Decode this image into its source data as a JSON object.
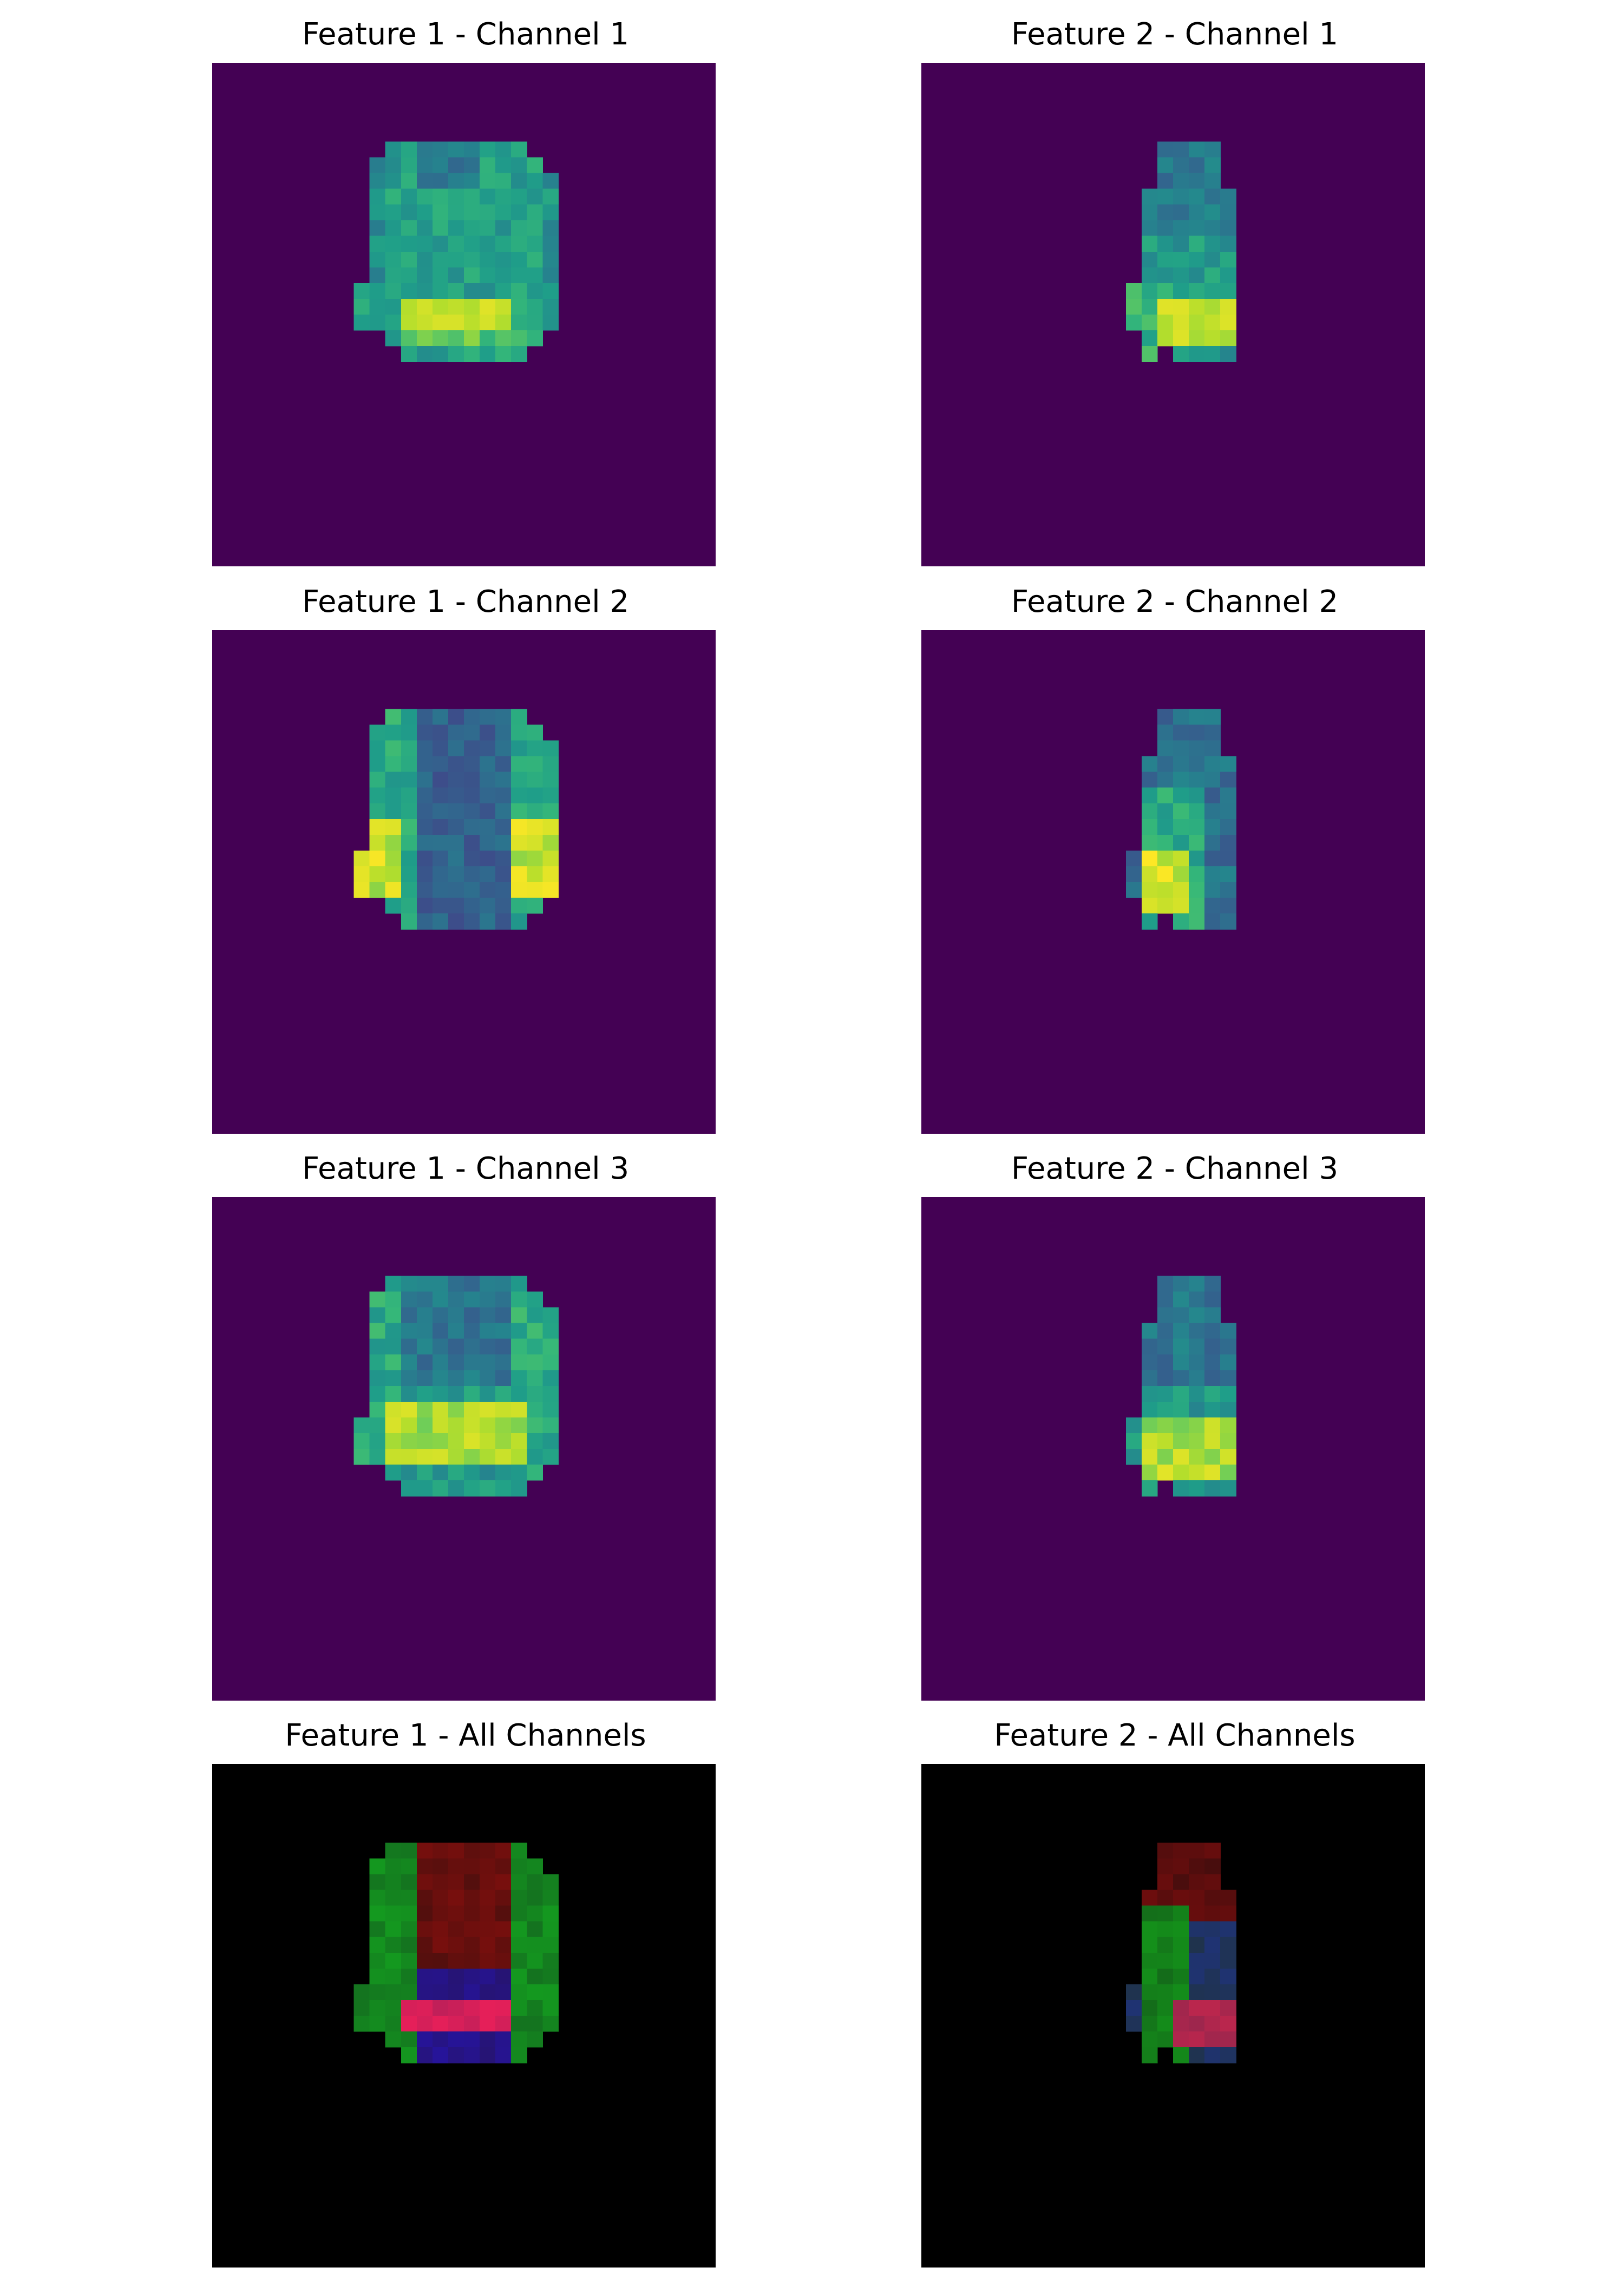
{
  "colors": {
    "viridis_background": "#440154",
    "rgb_background": "#000000",
    "viridis_stops": [
      "#440154",
      "#482878",
      "#3e4a89",
      "#31688e",
      "#26828e",
      "#1f9e89",
      "#35b779",
      "#6dcd59",
      "#b4de2c",
      "#fde725"
    ]
  },
  "panels": [
    {
      "id": "f1c1",
      "title": "Feature 1 - Channel 1",
      "mode": "viridis",
      "feature": 1,
      "channel": 1
    },
    {
      "id": "f2c1",
      "title": "Feature 2 - Channel 1",
      "mode": "viridis",
      "feature": 2,
      "channel": 1
    },
    {
      "id": "f1c2",
      "title": "Feature 1 - Channel 2",
      "mode": "viridis",
      "feature": 1,
      "channel": 2
    },
    {
      "id": "f2c2",
      "title": "Feature 2 - Channel 2",
      "mode": "viridis",
      "feature": 2,
      "channel": 2
    },
    {
      "id": "f1c3",
      "title": "Feature 1 - Channel 3",
      "mode": "viridis",
      "feature": 1,
      "channel": 3
    },
    {
      "id": "f2c3",
      "title": "Feature 2 - Channel 3",
      "mode": "viridis",
      "feature": 2,
      "channel": 3
    },
    {
      "id": "f1all",
      "title": "Feature 1 - All Channels",
      "mode": "rgb",
      "feature": 1,
      "channel": 0
    },
    {
      "id": "f2all",
      "title": "Feature 2 - All Channels",
      "mode": "rgb",
      "feature": 2,
      "channel": 0
    }
  ]
}
